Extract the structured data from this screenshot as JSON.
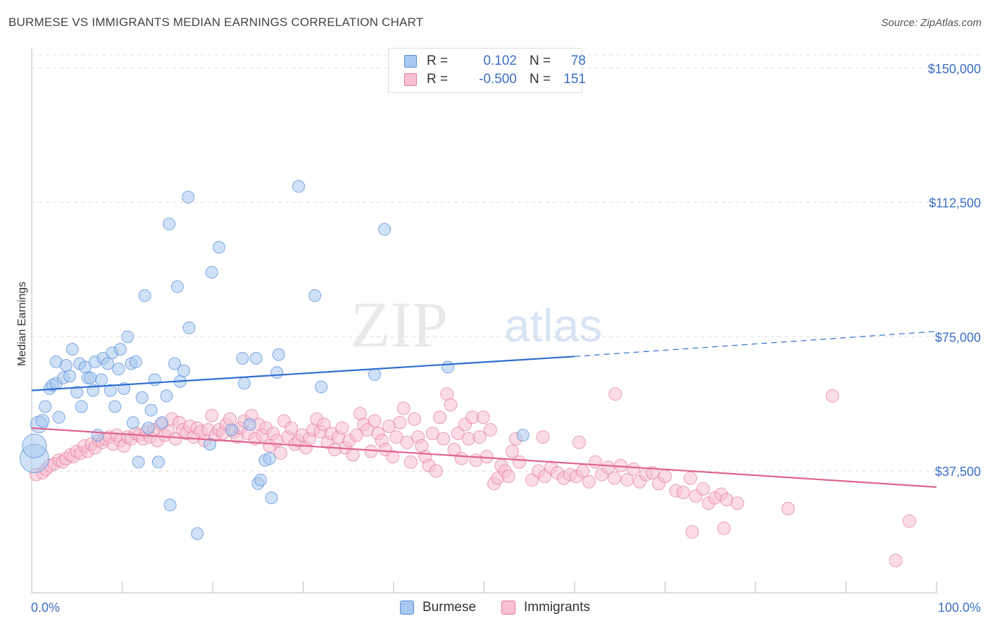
{
  "title": "BURMESE VS IMMIGRANTS MEDIAN EARNINGS CORRELATION CHART",
  "source": "Source: ZipAtlas.com",
  "watermark": {
    "zip": "ZIP",
    "atlas": "atlas"
  },
  "legend": {
    "rows": [
      {
        "r_label": "R =",
        "r_value": "0.102",
        "n_label": "N =",
        "n_value": "78",
        "color": "#a8c8f0",
        "border": "#5a8fd6"
      },
      {
        "r_label": "R =",
        "r_value": "-0.500",
        "n_label": "N =",
        "n_value": "151",
        "color": "#f8c0d0",
        "border": "#e07a9a"
      }
    ]
  },
  "bottom_legend": [
    {
      "label": "Burmese",
      "color": "#a8c8f0",
      "border": "#5a8fd6"
    },
    {
      "label": "Immigrants",
      "color": "#f8c0d0",
      "border": "#e07a9a"
    }
  ],
  "chart_data": {
    "type": "scatter",
    "title": "BURMESE VS IMMIGRANTS MEDIAN EARNINGS CORRELATION CHART",
    "xlabel": "",
    "ylabel": "Median Earnings",
    "xlim": [
      0,
      100
    ],
    "ylim": [
      0,
      155000
    ],
    "x_tick_labels": [
      "0.0%",
      "100.0%"
    ],
    "y_ticks": [
      {
        "value": 37500,
        "label": "$37,500"
      },
      {
        "value": 75000,
        "label": "$75,000"
      },
      {
        "value": 112500,
        "label": "$112,500"
      },
      {
        "value": 150000,
        "label": "$150,000"
      }
    ],
    "grid": "horizontal dashed",
    "legend_position": "top-center",
    "series": [
      {
        "name": "Burmese",
        "color": "#5a8fd6",
        "fill": "#a8c8f0",
        "trend": {
          "x": [
            0,
            60
          ],
          "y": [
            60000,
            69500
          ],
          "dashed_to": [
            100,
            76500
          ]
        },
        "points": [
          [
            0.3,
            41000,
            2.4
          ],
          [
            0.3,
            44500,
            2.0
          ],
          [
            0.8,
            50500,
            1.4
          ],
          [
            1.2,
            51500,
            1.1
          ],
          [
            1.5,
            55500,
            1.0
          ],
          [
            2.0,
            60500,
            1.0
          ],
          [
            2.3,
            61500,
            1.0
          ],
          [
            2.7,
            62000,
            1.0
          ],
          [
            3.0,
            52500,
            1.0
          ],
          [
            2.7,
            68000,
            1.0
          ],
          [
            3.5,
            63500,
            1.0
          ],
          [
            3.8,
            67000,
            1.0
          ],
          [
            4.2,
            64000,
            1.0
          ],
          [
            4.5,
            71500,
            1.0
          ],
          [
            5.0,
            59500,
            1.0
          ],
          [
            5.3,
            67500,
            1.0
          ],
          [
            5.5,
            55500,
            1.0
          ],
          [
            5.9,
            66500,
            1.0
          ],
          [
            6.2,
            63500,
            1.0
          ],
          [
            6.5,
            63500,
            1.0
          ],
          [
            6.8,
            60000,
            1.0
          ],
          [
            7.0,
            68000,
            1.0
          ],
          [
            7.3,
            47500,
            1.0
          ],
          [
            7.7,
            63000,
            1.0
          ],
          [
            7.9,
            69000,
            1.0
          ],
          [
            8.4,
            67500,
            1.0
          ],
          [
            8.7,
            60000,
            1.0
          ],
          [
            8.9,
            70500,
            1.0
          ],
          [
            9.2,
            55500,
            1.0
          ],
          [
            9.6,
            66000,
            1.0
          ],
          [
            9.8,
            71500,
            1.0
          ],
          [
            10.2,
            60500,
            1.0
          ],
          [
            10.6,
            75000,
            1.0
          ],
          [
            11.0,
            67500,
            1.0
          ],
          [
            11.2,
            51000,
            1.0
          ],
          [
            11.5,
            68000,
            1.0
          ],
          [
            11.8,
            40000,
            1.0
          ],
          [
            12.2,
            58000,
            1.0
          ],
          [
            12.5,
            86500,
            1.0
          ],
          [
            12.9,
            49500,
            1.0
          ],
          [
            13.2,
            54500,
            1.0
          ],
          [
            13.6,
            63000,
            1.0
          ],
          [
            14.0,
            40000,
            1.0
          ],
          [
            14.4,
            51000,
            1.0
          ],
          [
            14.9,
            58500,
            1.0
          ],
          [
            15.2,
            106500,
            1.0
          ],
          [
            15.3,
            28000,
            1.0
          ],
          [
            15.8,
            67500,
            1.0
          ],
          [
            16.1,
            89000,
            1.0
          ],
          [
            16.4,
            62500,
            1.0
          ],
          [
            16.8,
            65500,
            1.0
          ],
          [
            17.3,
            114000,
            1.0
          ],
          [
            17.4,
            77500,
            1.0
          ],
          [
            18.3,
            20000,
            1.0
          ],
          [
            19.7,
            45000,
            1.0
          ],
          [
            19.9,
            93000,
            1.0
          ],
          [
            20.7,
            100000,
            1.0
          ],
          [
            22.1,
            49000,
            1.0
          ],
          [
            23.3,
            69000,
            1.0
          ],
          [
            23.5,
            62000,
            1.0
          ],
          [
            24.1,
            50500,
            1.0
          ],
          [
            24.8,
            69000,
            1.0
          ],
          [
            25.0,
            34000,
            1.0
          ],
          [
            25.3,
            35000,
            1.0
          ],
          [
            25.8,
            40500,
            1.0
          ],
          [
            26.3,
            41000,
            1.0
          ],
          [
            26.5,
            30000,
            1.0
          ],
          [
            27.1,
            65000,
            1.0
          ],
          [
            27.3,
            70000,
            1.0
          ],
          [
            29.5,
            117000,
            1.0
          ],
          [
            31.3,
            86500,
            1.0
          ],
          [
            32.0,
            61000,
            1.0
          ],
          [
            37.9,
            64500,
            1.0
          ],
          [
            39.0,
            105000,
            1.0
          ],
          [
            46.0,
            66500,
            1.0
          ],
          [
            54.3,
            47500,
            1.0
          ]
        ]
      },
      {
        "name": "Immigrants",
        "color": "#e07a9a",
        "fill": "#f8c0d0",
        "trend": {
          "x": [
            0,
            100
          ],
          "y": [
            49500,
            33000
          ]
        },
        "points": [
          [
            0.5,
            36500
          ],
          [
            1.2,
            37000
          ],
          [
            1.6,
            38000
          ],
          [
            2.0,
            39000
          ],
          [
            2.5,
            39500
          ],
          [
            3.0,
            40500
          ],
          [
            3.4,
            40000
          ],
          [
            3.8,
            41000
          ],
          [
            4.3,
            42000
          ],
          [
            4.6,
            41500
          ],
          [
            5.0,
            43000
          ],
          [
            5.4,
            42500
          ],
          [
            5.8,
            44500
          ],
          [
            6.2,
            43000
          ],
          [
            6.6,
            45000
          ],
          [
            7.0,
            44000
          ],
          [
            7.4,
            46000
          ],
          [
            7.8,
            45500
          ],
          [
            8.2,
            46500
          ],
          [
            8.6,
            47000
          ],
          [
            9.0,
            45000
          ],
          [
            9.4,
            47500
          ],
          [
            9.8,
            46000
          ],
          [
            10.2,
            44500
          ],
          [
            10.6,
            47000
          ],
          [
            11.0,
            46500
          ],
          [
            11.5,
            48000
          ],
          [
            11.9,
            47500
          ],
          [
            12.3,
            46500
          ],
          [
            12.7,
            48500
          ],
          [
            13.1,
            47000
          ],
          [
            13.5,
            49000
          ],
          [
            13.9,
            46000
          ],
          [
            14.3,
            50500
          ],
          [
            14.7,
            47500
          ],
          [
            15.1,
            48500
          ],
          [
            15.5,
            52000
          ],
          [
            15.9,
            46500
          ],
          [
            16.3,
            51000
          ],
          [
            16.7,
            49000
          ],
          [
            17.1,
            48000
          ],
          [
            17.5,
            50000
          ],
          [
            17.9,
            47000
          ],
          [
            18.3,
            49500
          ],
          [
            18.7,
            48500
          ],
          [
            19.1,
            46000
          ],
          [
            19.5,
            49000
          ],
          [
            19.9,
            53000
          ],
          [
            20.3,
            47500
          ],
          [
            20.7,
            49000
          ],
          [
            21.1,
            48000
          ],
          [
            21.5,
            50500
          ],
          [
            21.9,
            52000
          ],
          [
            22.3,
            48500
          ],
          [
            22.7,
            47000
          ],
          [
            23.1,
            49500
          ],
          [
            23.5,
            51500
          ],
          [
            23.9,
            48000
          ],
          [
            24.3,
            53000
          ],
          [
            24.7,
            46500
          ],
          [
            25.1,
            50500
          ],
          [
            25.5,
            47500
          ],
          [
            25.9,
            49500
          ],
          [
            26.3,
            44500
          ],
          [
            26.7,
            48000
          ],
          [
            27.1,
            46000
          ],
          [
            27.5,
            42500
          ],
          [
            27.9,
            51500
          ],
          [
            28.3,
            47000
          ],
          [
            28.7,
            49500
          ],
          [
            29.1,
            45000
          ],
          [
            29.5,
            46000
          ],
          [
            29.9,
            47500
          ],
          [
            30.3,
            44000
          ],
          [
            30.7,
            46500
          ],
          [
            31.1,
            49000
          ],
          [
            31.5,
            52000
          ],
          [
            31.9,
            48500
          ],
          [
            32.3,
            50500
          ],
          [
            32.7,
            45500
          ],
          [
            33.1,
            48000
          ],
          [
            33.5,
            43500
          ],
          [
            33.9,
            47000
          ],
          [
            34.3,
            49500
          ],
          [
            34.7,
            44000
          ],
          [
            35.1,
            46000
          ],
          [
            35.5,
            42000
          ],
          [
            35.9,
            47500
          ],
          [
            36.3,
            53500
          ],
          [
            36.7,
            50500
          ],
          [
            37.1,
            49000
          ],
          [
            37.5,
            43000
          ],
          [
            37.9,
            51500
          ],
          [
            38.3,
            48000
          ],
          [
            38.7,
            46000
          ],
          [
            39.1,
            43500
          ],
          [
            39.5,
            50000
          ],
          [
            39.9,
            41500
          ],
          [
            40.3,
            47000
          ],
          [
            40.7,
            51000
          ],
          [
            41.1,
            55000
          ],
          [
            41.5,
            45500
          ],
          [
            41.9,
            40000
          ],
          [
            42.3,
            52000
          ],
          [
            42.7,
            47000
          ],
          [
            43.1,
            44500
          ],
          [
            43.5,
            41500
          ],
          [
            43.9,
            39000
          ],
          [
            44.3,
            48000
          ],
          [
            44.7,
            37500
          ],
          [
            45.1,
            52500
          ],
          [
            45.5,
            46500
          ],
          [
            45.9,
            59000
          ],
          [
            46.3,
            56000
          ],
          [
            46.7,
            43500
          ],
          [
            47.1,
            48000
          ],
          [
            47.5,
            41000
          ],
          [
            47.9,
            50500
          ],
          [
            48.3,
            46500
          ],
          [
            48.7,
            52500
          ],
          [
            49.1,
            40500
          ],
          [
            49.5,
            47000
          ],
          [
            49.9,
            52500
          ],
          [
            50.3,
            41500
          ],
          [
            50.7,
            49000
          ],
          [
            51.1,
            34000
          ],
          [
            51.5,
            35500
          ],
          [
            51.9,
            39000
          ],
          [
            52.3,
            37500
          ],
          [
            52.7,
            36000
          ],
          [
            53.1,
            43000
          ],
          [
            53.5,
            46500
          ],
          [
            53.9,
            40000
          ],
          [
            55.3,
            35000
          ],
          [
            56.0,
            37500
          ],
          [
            56.7,
            36000
          ],
          [
            57.4,
            38500
          ],
          [
            58.1,
            37000
          ],
          [
            58.8,
            35500
          ],
          [
            59.5,
            36500
          ],
          [
            60.2,
            36000
          ],
          [
            60.9,
            37500
          ],
          [
            61.6,
            34500
          ],
          [
            62.3,
            40000
          ],
          [
            63.0,
            36500
          ],
          [
            63.7,
            38500
          ],
          [
            64.4,
            35500
          ],
          [
            65.1,
            39000
          ],
          [
            65.8,
            35000
          ],
          [
            66.5,
            38000
          ],
          [
            67.2,
            34500
          ],
          [
            67.9,
            36500
          ],
          [
            68.6,
            37000
          ],
          [
            69.3,
            34000
          ],
          [
            70.0,
            36000
          ],
          [
            71.2,
            32000
          ],
          [
            72.0,
            31500
          ],
          [
            72.8,
            35500
          ],
          [
            73.4,
            30500
          ],
          [
            74.2,
            32500
          ],
          [
            74.8,
            28500
          ],
          [
            75.5,
            30000
          ],
          [
            76.2,
            31000
          ],
          [
            76.8,
            29500
          ],
          [
            73.0,
            20500
          ],
          [
            76.5,
            21500
          ],
          [
            78.0,
            28500
          ],
          [
            83.6,
            27000
          ],
          [
            88.5,
            58500
          ],
          [
            95.5,
            12500
          ],
          [
            97.0,
            23500
          ],
          [
            64.5,
            59000
          ],
          [
            60.5,
            45500
          ],
          [
            56.5,
            47000
          ]
        ]
      }
    ]
  }
}
